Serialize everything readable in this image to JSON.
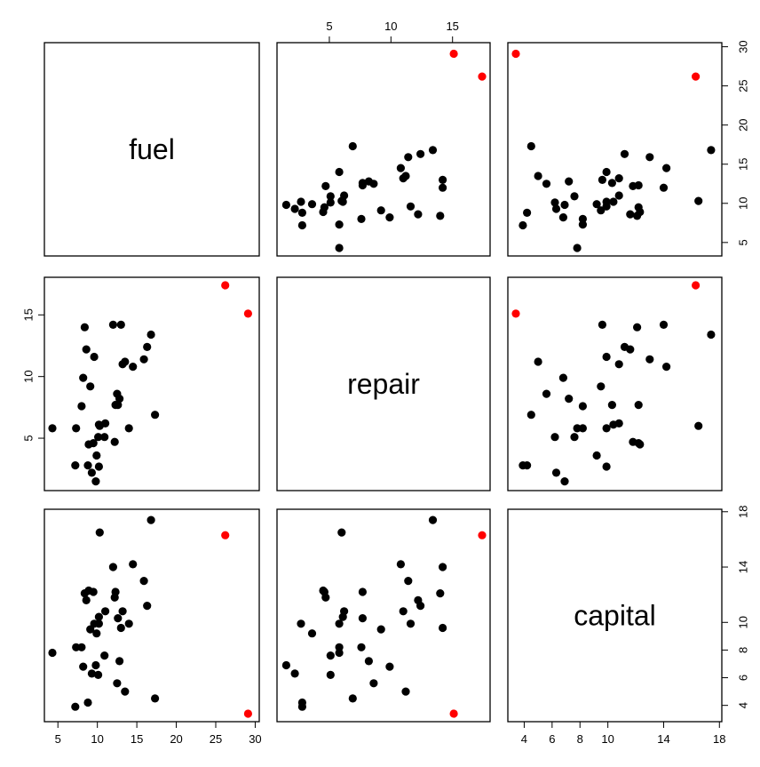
{
  "chart_data": {
    "type": "scatter",
    "title": "",
    "variables": [
      "fuel",
      "repair",
      "capital"
    ],
    "labels": {
      "fuel": "fuel",
      "repair": "repair",
      "capital": "capital"
    },
    "ranges": {
      "fuel": [
        4.3,
        29.5
      ],
      "repair": [
        1.4,
        17.4
      ],
      "capital": [
        3.4,
        17.6
      ]
    },
    "ticks": {
      "fuel": [
        5,
        10,
        15,
        20,
        25,
        30
      ],
      "repair": [
        5,
        10,
        15
      ],
      "capital": [
        4,
        6,
        8,
        10,
        14,
        18
      ]
    },
    "tick_labels": {
      "fuel": [
        "5",
        "10",
        "15",
        "20",
        "25",
        "30"
      ],
      "repair": [
        "5",
        "10",
        "15"
      ],
      "capital": [
        "4",
        "6",
        "8",
        "10",
        "14",
        "18"
      ]
    },
    "series": [
      {
        "color": "#000000",
        "points": [
          {
            "fuel": 4.3,
            "repair": 5.8,
            "capital": 7.8
          },
          {
            "fuel": 7.2,
            "repair": 2.8,
            "capital": 3.9
          },
          {
            "fuel": 7.3,
            "repair": 5.8,
            "capital": 8.2
          },
          {
            "fuel": 8.0,
            "repair": 7.6,
            "capital": 8.2
          },
          {
            "fuel": 8.2,
            "repair": 9.9,
            "capital": 6.8
          },
          {
            "fuel": 8.4,
            "repair": 14.0,
            "capital": 12.1
          },
          {
            "fuel": 8.6,
            "repair": 12.2,
            "capital": 11.6
          },
          {
            "fuel": 8.8,
            "repair": 2.8,
            "capital": 4.2
          },
          {
            "fuel": 8.9,
            "repair": 4.5,
            "capital": 12.3
          },
          {
            "fuel": 9.1,
            "repair": 9.2,
            "capital": 9.5
          },
          {
            "fuel": 9.3,
            "repair": 2.2,
            "capital": 6.3
          },
          {
            "fuel": 9.5,
            "repair": 4.6,
            "capital": 12.2
          },
          {
            "fuel": 9.6,
            "repair": 11.6,
            "capital": 9.9
          },
          {
            "fuel": 9.8,
            "repair": 1.5,
            "capital": 6.9
          },
          {
            "fuel": 9.9,
            "repair": 3.6,
            "capital": 9.2
          },
          {
            "fuel": 10.1,
            "repair": 5.1,
            "capital": 6.2
          },
          {
            "fuel": 10.2,
            "repair": 2.7,
            "capital": 9.9
          },
          {
            "fuel": 10.2,
            "repair": 6.1,
            "capital": 10.4
          },
          {
            "fuel": 10.3,
            "repair": 6.0,
            "capital": 16.5
          },
          {
            "fuel": 10.9,
            "repair": 5.1,
            "capital": 7.6
          },
          {
            "fuel": 11.0,
            "repair": 6.2,
            "capital": 10.8
          },
          {
            "fuel": 12.0,
            "repair": 14.2,
            "capital": 14.0
          },
          {
            "fuel": 12.2,
            "repair": 4.7,
            "capital": 11.8
          },
          {
            "fuel": 12.3,
            "repair": 7.7,
            "capital": 12.2
          },
          {
            "fuel": 12.5,
            "repair": 8.6,
            "capital": 5.6
          },
          {
            "fuel": 12.6,
            "repair": 7.7,
            "capital": 10.3
          },
          {
            "fuel": 12.8,
            "repair": 8.2,
            "capital": 7.2
          },
          {
            "fuel": 13.0,
            "repair": 14.2,
            "capital": 9.6
          },
          {
            "fuel": 13.2,
            "repair": 11.0,
            "capital": 10.8
          },
          {
            "fuel": 13.5,
            "repair": 11.2,
            "capital": 5.0
          },
          {
            "fuel": 14.0,
            "repair": 5.8,
            "capital": 9.9
          },
          {
            "fuel": 14.5,
            "repair": 10.8,
            "capital": 14.2
          },
          {
            "fuel": 15.9,
            "repair": 11.4,
            "capital": 13.0
          },
          {
            "fuel": 16.3,
            "repair": 12.4,
            "capital": 11.2
          },
          {
            "fuel": 16.8,
            "repair": 13.4,
            "capital": 17.4
          },
          {
            "fuel": 17.3,
            "repair": 6.9,
            "capital": 4.5
          }
        ]
      },
      {
        "color": "#ff0000",
        "points": [
          {
            "fuel": 26.2,
            "repair": 17.4,
            "capital": 16.3
          },
          {
            "fuel": 29.1,
            "repair": 15.1,
            "capital": 3.4
          }
        ]
      }
    ],
    "grid": false,
    "legend": "none"
  }
}
